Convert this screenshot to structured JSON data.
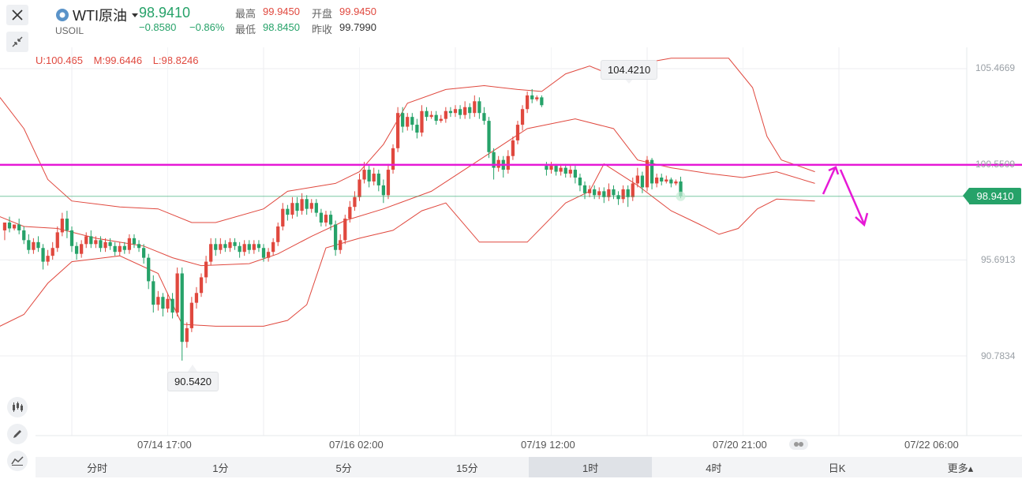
{
  "header": {
    "title": "WTI原油",
    "symbol": "USOIL",
    "price": "98.9410",
    "change": "−0.8580",
    "change_pct": "−0.86%",
    "stats": [
      {
        "label": "最高",
        "value": "99.9450",
        "color": "#e0483e"
      },
      {
        "label": "开盘",
        "value": "99.9450",
        "color": "#e0483e"
      },
      {
        "label": "最低",
        "value": "98.8450",
        "color": "#26a269"
      },
      {
        "label": "昨收",
        "value": "99.7990",
        "color": "#333333"
      }
    ]
  },
  "indicator": {
    "upper": "U:100.465",
    "middle": "M:99.6446",
    "lower": "L:98.8246"
  },
  "tabs": [
    "分时",
    "1分",
    "5分",
    "15分",
    "1时",
    "4时",
    "日K",
    "更多▴"
  ],
  "active_tab": "1时",
  "current_price_label": "98.9410",
  "colors": {
    "up": "#e0483e",
    "down": "#26a269",
    "band": "#e0483e",
    "hline": "#e619d6",
    "current": "#26a269"
  },
  "chart_data": {
    "type": "candlestick",
    "y_ticks": [
      105.4669,
      100.5509,
      95.6913,
      90.7834
    ],
    "y_tick_labels": [
      "105.4669",
      "100.5509",
      "95.6913",
      "90.7834"
    ],
    "ylim": [
      88.2,
      107.8
    ],
    "x_tick_labels": [
      "07/14 17:00",
      "07/16 02:00",
      "07/19 12:00",
      "07/20 21:00",
      "07/22 06:00"
    ],
    "x_tick_index": [
      15,
      55,
      95,
      135,
      175
    ],
    "n_slots": 185,
    "annotations": [
      {
        "text": "104.4210",
        "index": 131,
        "value": 104.421,
        "kind": "high"
      },
      {
        "text": "90.5420",
        "index": 37,
        "value": 90.542,
        "kind": "low"
      }
    ],
    "horizontal_line": 100.5509,
    "current_price": 98.941,
    "candles": [
      [
        97.2,
        97.6,
        97.0,
        96.7
      ],
      [
        97.6,
        97.3,
        97.9,
        97.1
      ],
      [
        97.3,
        97.5,
        97.2,
        97.4
      ],
      [
        97.5,
        97.2,
        97.8,
        97.0
      ],
      [
        97.2,
        96.7,
        97.4,
        96.5
      ],
      [
        96.7,
        96.2,
        97.0,
        96.0
      ],
      [
        96.2,
        96.6,
        96.0,
        96.8
      ],
      [
        96.6,
        96.3,
        96.9,
        96.1
      ],
      [
        96.3,
        95.6,
        96.5,
        95.2
      ],
      [
        95.6,
        95.9,
        95.4,
        96.2
      ],
      [
        95.9,
        96.3,
        95.7,
        96.6
      ],
      [
        96.3,
        97.1,
        96.1,
        97.4
      ],
      [
        97.1,
        97.8,
        96.9,
        98.1
      ],
      [
        97.8,
        97.2,
        98.2,
        96.8
      ],
      [
        97.2,
        96.4,
        97.4,
        96.1
      ],
      [
        96.4,
        96.0,
        96.6,
        95.7
      ],
      [
        96.0,
        96.5,
        95.8,
        96.7
      ],
      [
        96.5,
        96.9,
        96.3,
        97.1
      ],
      [
        96.9,
        96.5,
        97.2,
        96.3
      ],
      [
        96.5,
        96.7,
        96.3,
        96.9
      ],
      [
        96.7,
        96.3,
        96.9,
        96.1
      ],
      [
        96.3,
        96.6,
        96.1,
        96.8
      ],
      [
        96.6,
        96.4,
        96.8,
        96.2
      ],
      [
        96.4,
        96.1,
        96.6,
        95.9
      ],
      [
        96.1,
        96.4,
        95.9,
        96.6
      ],
      [
        96.4,
        96.2,
        96.6,
        96.0
      ],
      [
        96.2,
        96.8,
        96.0,
        97.0
      ],
      [
        96.8,
        96.5,
        97.0,
        96.3
      ],
      [
        96.5,
        96.3,
        96.7,
        96.1
      ],
      [
        96.3,
        95.8,
        96.5,
        95.5
      ],
      [
        95.8,
        94.6,
        96.0,
        94.2
      ],
      [
        94.6,
        93.4,
        94.9,
        93.0
      ],
      [
        93.4,
        93.8,
        93.1,
        94.1
      ],
      [
        93.8,
        93.2,
        94.0,
        92.8
      ],
      [
        93.2,
        93.7,
        93.0,
        94.0
      ],
      [
        93.7,
        93.0,
        94.0,
        92.7
      ],
      [
        93.0,
        95.0,
        92.8,
        95.3
      ],
      [
        95.0,
        91.5,
        95.3,
        90.542
      ],
      [
        91.5,
        92.2,
        91.2,
        92.5
      ],
      [
        92.2,
        93.5,
        92.0,
        93.8
      ],
      [
        93.5,
        94.0,
        93.2,
        94.3
      ],
      [
        94.0,
        94.8,
        93.8,
        95.0
      ],
      [
        94.8,
        95.6,
        94.5,
        95.9
      ],
      [
        95.6,
        96.5,
        95.4,
        96.8
      ],
      [
        96.5,
        96.2,
        96.8,
        95.9
      ],
      [
        96.2,
        96.5,
        96.0,
        96.8
      ],
      [
        96.5,
        96.3,
        96.7,
        96.1
      ],
      [
        96.3,
        96.6,
        96.1,
        96.8
      ],
      [
        96.6,
        96.4,
        96.8,
        96.2
      ],
      [
        96.4,
        96.1,
        96.6,
        95.8
      ],
      [
        96.1,
        96.5,
        95.9,
        96.7
      ],
      [
        96.5,
        96.2,
        96.7,
        96.0
      ],
      [
        96.2,
        96.5,
        96.0,
        96.7
      ],
      [
        96.5,
        96.3,
        96.7,
        96.1
      ],
      [
        96.3,
        95.8,
        96.5,
        95.6
      ],
      [
        95.8,
        96.1,
        95.6,
        96.3
      ],
      [
        96.1,
        96.6,
        95.9,
        96.8
      ],
      [
        96.6,
        97.4,
        96.4,
        97.6
      ],
      [
        97.4,
        98.3,
        97.2,
        98.6
      ],
      [
        98.3,
        98.0,
        98.5,
        97.7
      ],
      [
        98.0,
        98.6,
        97.8,
        98.9
      ],
      [
        98.6,
        98.2,
        98.9,
        97.9
      ],
      [
        98.2,
        98.8,
        98.0,
        99.1
      ],
      [
        98.8,
        98.3,
        99.0,
        98.0
      ],
      [
        98.3,
        98.6,
        98.1,
        98.8
      ],
      [
        98.6,
        98.1,
        98.8,
        97.9
      ],
      [
        98.1,
        97.6,
        98.3,
        97.4
      ],
      [
        97.6,
        98.0,
        97.4,
        98.2
      ],
      [
        98.0,
        97.5,
        98.2,
        97.2
      ],
      [
        97.5,
        96.2,
        97.7,
        95.9
      ],
      [
        96.2,
        96.7,
        96.0,
        97.0
      ],
      [
        96.7,
        97.8,
        96.5,
        98.0
      ],
      [
        97.8,
        98.4,
        97.6,
        98.7
      ],
      [
        98.4,
        98.9,
        98.2,
        99.2
      ],
      [
        98.9,
        99.8,
        98.7,
        100.1
      ],
      [
        99.8,
        100.3,
        99.6,
        100.7
      ],
      [
        100.3,
        99.7,
        100.5,
        99.4
      ],
      [
        99.7,
        100.1,
        99.5,
        100.4
      ],
      [
        100.1,
        99.5,
        100.3,
        99.2
      ],
      [
        99.5,
        99.0,
        99.8,
        98.6
      ],
      [
        99.0,
        100.3,
        98.8,
        100.6
      ],
      [
        100.3,
        101.4,
        100.1,
        101.6
      ],
      [
        101.4,
        103.2,
        101.2,
        103.5
      ],
      [
        103.2,
        102.5,
        103.5,
        102.2
      ],
      [
        102.5,
        103.0,
        102.3,
        103.2
      ],
      [
        103.0,
        102.6,
        103.2,
        102.3
      ],
      [
        102.6,
        102.2,
        102.9,
        101.9
      ],
      [
        102.2,
        103.3,
        102.0,
        103.6
      ],
      [
        103.3,
        103.0,
        103.5,
        102.8
      ],
      [
        103.0,
        103.1,
        102.9,
        103.3
      ],
      [
        103.1,
        102.8,
        103.3,
        102.6
      ],
      [
        102.8,
        102.9,
        102.7,
        103.1
      ],
      [
        102.9,
        103.3,
        102.7,
        103.5
      ],
      [
        103.3,
        103.2,
        103.5,
        103.0
      ],
      [
        103.2,
        103.4,
        103.0,
        103.6
      ],
      [
        103.4,
        103.1,
        103.6,
        102.9
      ],
      [
        103.1,
        103.5,
        102.9,
        103.8
      ],
      [
        103.5,
        103.2,
        103.7,
        102.9
      ],
      [
        103.2,
        103.8,
        103.0,
        104.1
      ],
      [
        103.8,
        103.2,
        104.0,
        102.9
      ],
      [
        103.2,
        102.8,
        103.5,
        102.6
      ],
      [
        102.8,
        101.2,
        103.0,
        100.9
      ],
      [
        101.2,
        100.4,
        101.4,
        99.8
      ],
      [
        100.4,
        100.8,
        100.2,
        101.0
      ],
      [
        100.8,
        100.3,
        101.0,
        99.9
      ],
      [
        100.3,
        101.0,
        100.1,
        101.3
      ],
      [
        101.0,
        101.8,
        100.8,
        102.0
      ],
      [
        101.8,
        102.6,
        101.6,
        102.8
      ],
      [
        102.6,
        103.4,
        102.3,
        103.6
      ],
      [
        103.4,
        104.1,
        103.2,
        104.3
      ],
      [
        104.1,
        103.9,
        104.421,
        103.7
      ],
      [
        103.9,
        104.0,
        103.8,
        104.1
      ],
      [
        104.0,
        103.6,
        104.1,
        103.5
      ],
      [
        100.5,
        100.3,
        100.7,
        100.0
      ],
      [
        100.3,
        100.5,
        100.1,
        100.7
      ],
      [
        100.5,
        100.2,
        100.6,
        100.0
      ],
      [
        100.2,
        100.4,
        100.0,
        100.6
      ],
      [
        100.4,
        100.1,
        100.6,
        99.9
      ],
      [
        100.1,
        100.3,
        99.9,
        100.5
      ],
      [
        100.3,
        99.9,
        100.5,
        99.6
      ],
      [
        99.9,
        99.5,
        100.1,
        99.2
      ],
      [
        99.5,
        99.1,
        99.7,
        98.8
      ],
      [
        99.1,
        99.3,
        98.9,
        99.5
      ],
      [
        99.3,
        99.0,
        99.5,
        98.8
      ],
      [
        99.0,
        99.2,
        98.8,
        99.4
      ],
      [
        99.2,
        98.9,
        99.4,
        98.6
      ],
      [
        98.9,
        99.3,
        98.7,
        99.6
      ],
      [
        99.3,
        99.0,
        99.5,
        98.8
      ],
      [
        99.0,
        98.8,
        99.2,
        98.5
      ],
      [
        98.8,
        99.3,
        98.6,
        99.5
      ],
      [
        99.3,
        98.9,
        99.5,
        98.4
      ],
      [
        98.9,
        99.6,
        98.7,
        99.9
      ],
      [
        99.6,
        100.0,
        99.4,
        100.4
      ],
      [
        100.0,
        99.4,
        100.2,
        99.1
      ],
      [
        99.4,
        100.8,
        99.2,
        101.0
      ],
      [
        100.8,
        99.6,
        100.9,
        99.3
      ],
      [
        99.6,
        99.9,
        99.4,
        100.1
      ],
      [
        99.9,
        99.7,
        100.1,
        99.5
      ],
      [
        99.7,
        99.8,
        99.6,
        100.0
      ],
      [
        99.8,
        99.6,
        99.9,
        99.4
      ],
      [
        99.6,
        99.7,
        99.5,
        99.8
      ],
      [
        99.7,
        98.941,
        99.945,
        98.845
      ]
    ],
    "band_upper": [
      [
        0,
        104.0
      ],
      [
        5,
        102.4
      ],
      [
        10,
        99.8
      ],
      [
        15,
        98.7
      ],
      [
        25,
        98.4
      ],
      [
        33,
        98.3
      ],
      [
        40,
        97.6
      ],
      [
        45,
        97.6
      ],
      [
        55,
        98.3
      ],
      [
        60,
        99.2
      ],
      [
        65,
        99.4
      ],
      [
        70,
        99.6
      ],
      [
        75,
        100.2
      ],
      [
        80,
        101.6
      ],
      [
        85,
        103.7
      ],
      [
        93,
        104.4
      ],
      [
        101,
        104.6
      ],
      [
        108,
        104.4
      ],
      [
        113,
        104.3
      ],
      [
        118,
        105.2
      ],
      [
        123,
        105.6
      ],
      [
        128,
        105.1
      ],
      [
        133,
        105.7
      ],
      [
        140,
        106.0
      ],
      [
        147,
        106.0
      ],
      [
        152,
        106.0
      ],
      [
        157,
        104.5
      ],
      [
        160,
        102.0
      ],
      [
        163,
        100.8
      ],
      [
        170,
        100.2
      ]
    ],
    "band_mid": [
      [
        0,
        97.9
      ],
      [
        5,
        97.4
      ],
      [
        12,
        97.3
      ],
      [
        20,
        96.8
      ],
      [
        30,
        96.4
      ],
      [
        36,
        95.8
      ],
      [
        42,
        95.4
      ],
      [
        52,
        95.5
      ],
      [
        58,
        96.0
      ],
      [
        65,
        96.9
      ],
      [
        72,
        97.7
      ],
      [
        80,
        98.3
      ],
      [
        90,
        99.2
      ],
      [
        100,
        100.8
      ],
      [
        110,
        102.4
      ],
      [
        120,
        102.9
      ],
      [
        128,
        102.4
      ],
      [
        133,
        100.8
      ],
      [
        140,
        100.4
      ],
      [
        148,
        100.1
      ],
      [
        155,
        99.9
      ],
      [
        162,
        100.2
      ],
      [
        170,
        99.6
      ]
    ],
    "band_lower": [
      [
        0,
        92.3
      ],
      [
        5,
        92.9
      ],
      [
        10,
        94.5
      ],
      [
        15,
        95.6
      ],
      [
        25,
        95.9
      ],
      [
        33,
        95.0
      ],
      [
        38,
        92.4
      ],
      [
        45,
        92.3
      ],
      [
        55,
        92.3
      ],
      [
        60,
        92.6
      ],
      [
        64,
        93.4
      ],
      [
        68,
        96.3
      ],
      [
        75,
        96.8
      ],
      [
        82,
        97.2
      ],
      [
        88,
        98.2
      ],
      [
        93,
        98.6
      ],
      [
        100,
        96.6
      ],
      [
        110,
        96.6
      ],
      [
        118,
        98.6
      ],
      [
        123,
        99.2
      ],
      [
        126,
        100.6
      ],
      [
        133,
        99.5
      ],
      [
        140,
        98.2
      ],
      [
        146,
        97.5
      ],
      [
        150,
        97.0
      ],
      [
        154,
        97.3
      ],
      [
        158,
        98.3
      ],
      [
        162,
        98.8
      ],
      [
        170,
        98.7
      ]
    ]
  }
}
